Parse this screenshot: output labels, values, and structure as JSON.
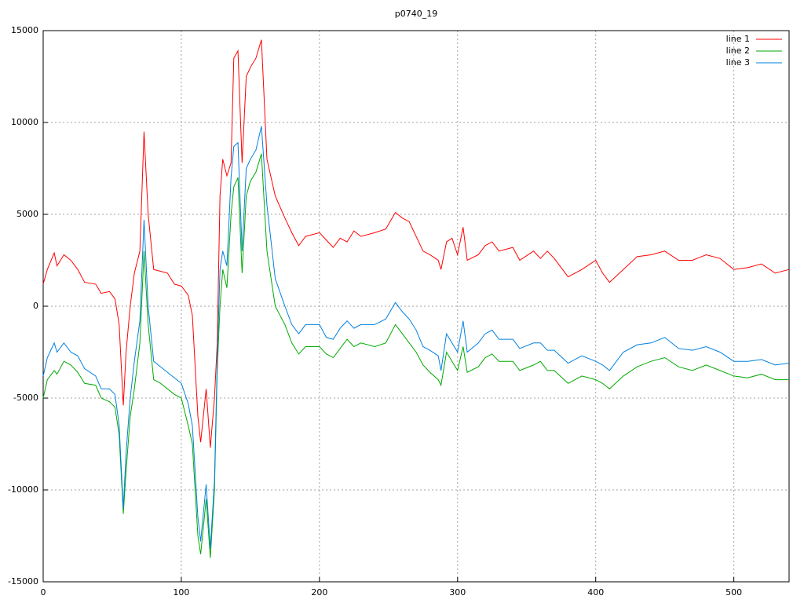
{
  "chart_data": {
    "type": "line",
    "title": "p0740_19",
    "x": [
      0,
      3,
      8,
      10,
      15,
      20,
      25,
      30,
      38,
      42,
      48,
      52,
      55,
      58,
      60,
      63,
      66,
      70,
      73,
      76,
      80,
      85,
      90,
      95,
      100,
      105,
      108,
      112,
      114,
      118,
      121,
      124,
      126,
      128,
      130,
      133,
      136,
      138,
      141,
      144,
      147,
      150,
      154,
      158,
      162,
      168,
      175,
      180,
      185,
      190,
      200,
      205,
      210,
      215,
      220,
      225,
      230,
      240,
      248,
      255,
      260,
      265,
      270,
      275,
      280,
      286,
      288,
      292,
      296,
      300,
      304,
      307,
      315,
      320,
      325,
      330,
      340,
      345,
      355,
      360,
      365,
      370,
      380,
      390,
      400,
      405,
      410,
      420,
      430,
      440,
      450,
      460,
      470,
      480,
      490,
      500,
      510,
      520,
      530,
      540
    ],
    "series": [
      {
        "name": "line 1",
        "color": "#ff0000",
        "values": [
          1200,
          2000,
          2900,
          2200,
          2800,
          2500,
          2000,
          1300,
          1200,
          700,
          800,
          400,
          -1000,
          -5400,
          -2500,
          0,
          1800,
          3000,
          9500,
          5000,
          2000,
          1900,
          1800,
          1200,
          1100,
          600,
          -500,
          -6000,
          -7400,
          -4500,
          -7700,
          -5000,
          -2000,
          6000,
          8000,
          7100,
          7800,
          13500,
          13900,
          7800,
          12500,
          13000,
          13500,
          14500,
          8000,
          6000,
          4800,
          4000,
          3300,
          3800,
          4000,
          3600,
          3200,
          3700,
          3500,
          4100,
          3800,
          4000,
          4200,
          5100,
          4800,
          4600,
          3800,
          3000,
          2800,
          2500,
          2000,
          3500,
          3700,
          2800,
          4300,
          2500,
          2800,
          3300,
          3500,
          3000,
          3200,
          2500,
          3000,
          2600,
          3000,
          2600,
          1600,
          2000,
          2500,
          1800,
          1300,
          2000,
          2700,
          2800,
          3000,
          2500,
          2500,
          2800,
          2600,
          2000,
          2100,
          2300,
          1800,
          2000
        ]
      },
      {
        "name": "line 2",
        "color": "#00aa00",
        "values": [
          -5000,
          -4000,
          -3500,
          -3700,
          -3000,
          -3200,
          -3600,
          -4200,
          -4300,
          -5000,
          -5200,
          -5500,
          -7000,
          -11300,
          -9000,
          -6000,
          -4500,
          -2000,
          3000,
          -1000,
          -4000,
          -4200,
          -4500,
          -4800,
          -5000,
          -6500,
          -7500,
          -12500,
          -13500,
          -10500,
          -13700,
          -10000,
          -3500,
          0,
          2000,
          1000,
          5000,
          6500,
          7000,
          1800,
          6000,
          6800,
          7300,
          8300,
          3000,
          0,
          -1000,
          -2000,
          -2600,
          -2200,
          -2200,
          -2600,
          -2800,
          -2300,
          -1800,
          -2200,
          -2000,
          -2200,
          -2000,
          -1000,
          -1500,
          -2000,
          -2500,
          -3200,
          -3600,
          -4000,
          -4300,
          -2500,
          -3000,
          -3500,
          -2200,
          -3600,
          -3300,
          -2800,
          -2600,
          -3000,
          -3000,
          -3500,
          -3200,
          -3000,
          -3500,
          -3500,
          -4200,
          -3800,
          -4000,
          -4200,
          -4500,
          -3800,
          -3300,
          -3000,
          -2800,
          -3300,
          -3500,
          -3200,
          -3500,
          -3800,
          -3900,
          -3700,
          -4000,
          -4000
        ]
      },
      {
        "name": "line 3",
        "color": "#0080e0",
        "values": [
          -3800,
          -2800,
          -2000,
          -2500,
          -2000,
          -2500,
          -2700,
          -3400,
          -3800,
          -4500,
          -4500,
          -4800,
          -6500,
          -11000,
          -8000,
          -5000,
          -3000,
          -800,
          4700,
          0,
          -3000,
          -3300,
          -3600,
          -3900,
          -4200,
          -5300,
          -6500,
          -11500,
          -12800,
          -9700,
          -13200,
          -9500,
          -3000,
          2000,
          3000,
          2200,
          7000,
          8700,
          8900,
          3000,
          7500,
          8000,
          8500,
          9800,
          5500,
          1500,
          0,
          -1000,
          -1500,
          -1000,
          -1000,
          -1700,
          -1800,
          -1200,
          -800,
          -1200,
          -1000,
          -1000,
          -700,
          200,
          -300,
          -700,
          -1300,
          -2200,
          -2400,
          -2700,
          -3500,
          -1500,
          -2000,
          -2500,
          -800,
          -2500,
          -2000,
          -1500,
          -1300,
          -1800,
          -1800,
          -2300,
          -2000,
          -2000,
          -2400,
          -2400,
          -3100,
          -2700,
          -3000,
          -3200,
          -3500,
          -2500,
          -2100,
          -2000,
          -1700,
          -2300,
          -2400,
          -2200,
          -2500,
          -3000,
          -3000,
          -2900,
          -3200,
          -3100
        ]
      }
    ],
    "xlim": [
      0,
      540
    ],
    "xticks": [
      0,
      100,
      200,
      300,
      400,
      500
    ],
    "ylim": [
      -15000,
      15000
    ],
    "yticks": [
      -15000,
      -10000,
      -5000,
      0,
      5000,
      10000,
      15000
    ],
    "grid": true,
    "legend": "top-right"
  }
}
